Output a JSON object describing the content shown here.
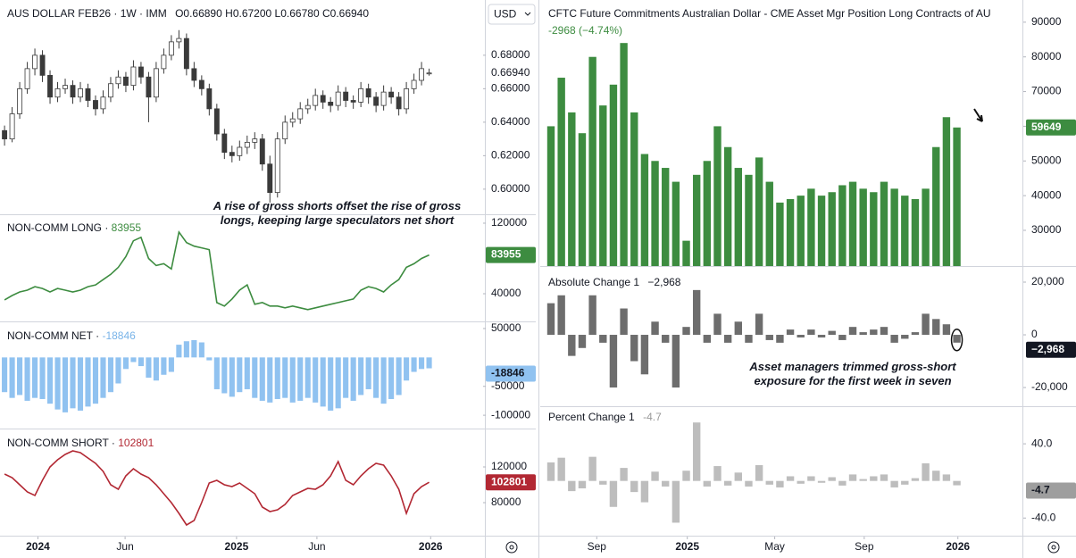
{
  "chart_data": [
    {
      "type": "candlestick",
      "title": "AUS DOLLAR FEB26",
      "interval": "1W",
      "exchange": "IMM",
      "currency": "USD",
      "ohlc_header": [
        {
          "name": "O",
          "value": 0.6689,
          "label": "0.66890"
        },
        {
          "name": "H",
          "value": 0.672,
          "label": "0.67200"
        },
        {
          "name": "L",
          "value": 0.6678,
          "label": "0.66780"
        },
        {
          "name": "C",
          "value": 0.6694,
          "label": "0.66940"
        }
      ],
      "open": [
        0.635,
        0.63,
        0.645,
        0.66,
        0.672,
        0.68,
        0.668,
        0.655,
        0.66,
        0.662,
        0.655,
        0.66,
        0.653,
        0.648,
        0.655,
        0.663,
        0.667,
        0.662,
        0.673,
        0.667,
        0.655,
        0.672,
        0.68,
        0.688,
        0.69,
        0.672,
        0.665,
        0.66,
        0.648,
        0.633,
        0.622,
        0.62,
        0.625,
        0.628,
        0.63,
        0.615,
        0.598,
        0.63,
        0.64,
        0.642,
        0.648,
        0.65,
        0.656,
        0.652,
        0.65,
        0.658,
        0.653,
        0.652,
        0.66,
        0.655,
        0.65,
        0.658,
        0.655,
        0.648,
        0.66,
        0.665,
        0.6689
      ],
      "high": [
        0.638,
        0.649,
        0.664,
        0.676,
        0.684,
        0.683,
        0.671,
        0.664,
        0.666,
        0.665,
        0.664,
        0.663,
        0.656,
        0.659,
        0.667,
        0.671,
        0.67,
        0.677,
        0.676,
        0.67,
        0.676,
        0.684,
        0.692,
        0.695,
        0.693,
        0.676,
        0.668,
        0.663,
        0.651,
        0.636,
        0.626,
        0.629,
        0.632,
        0.634,
        0.633,
        0.62,
        0.634,
        0.644,
        0.646,
        0.652,
        0.654,
        0.66,
        0.659,
        0.655,
        0.662,
        0.661,
        0.656,
        0.664,
        0.663,
        0.658,
        0.662,
        0.661,
        0.658,
        0.664,
        0.669,
        0.676,
        0.672
      ],
      "low": [
        0.626,
        0.628,
        0.642,
        0.657,
        0.668,
        0.664,
        0.651,
        0.652,
        0.657,
        0.651,
        0.652,
        0.649,
        0.644,
        0.645,
        0.652,
        0.66,
        0.658,
        0.659,
        0.663,
        0.64,
        0.652,
        0.669,
        0.677,
        0.684,
        0.668,
        0.661,
        0.656,
        0.644,
        0.629,
        0.618,
        0.616,
        0.617,
        0.621,
        0.624,
        0.611,
        0.592,
        0.595,
        0.627,
        0.637,
        0.639,
        0.645,
        0.647,
        0.648,
        0.646,
        0.647,
        0.649,
        0.648,
        0.649,
        0.651,
        0.646,
        0.647,
        0.651,
        0.644,
        0.645,
        0.657,
        0.662,
        0.6678
      ],
      "close": [
        0.63,
        0.645,
        0.66,
        0.672,
        0.68,
        0.668,
        0.655,
        0.66,
        0.662,
        0.655,
        0.66,
        0.653,
        0.648,
        0.655,
        0.663,
        0.667,
        0.662,
        0.673,
        0.667,
        0.655,
        0.672,
        0.68,
        0.688,
        0.69,
        0.672,
        0.665,
        0.66,
        0.648,
        0.633,
        0.622,
        0.62,
        0.625,
        0.628,
        0.63,
        0.615,
        0.598,
        0.63,
        0.64,
        0.642,
        0.648,
        0.65,
        0.656,
        0.652,
        0.65,
        0.658,
        0.653,
        0.652,
        0.66,
        0.655,
        0.65,
        0.658,
        0.655,
        0.648,
        0.66,
        0.665,
        0.672,
        0.6694
      ],
      "up_color": "#ffffff",
      "down_color": "#3a3a3a",
      "ylim": [
        0.585,
        0.713
      ],
      "yticks": [
        {
          "value": 0.6,
          "label": "0.60000"
        },
        {
          "value": 0.62,
          "label": "0.62000"
        },
        {
          "value": 0.64,
          "label": "0.64000"
        },
        {
          "value": 0.66,
          "label": "0.66000"
        },
        {
          "value": 0.68,
          "label": "0.68000"
        }
      ],
      "xlim": [
        -0.6,
        63
      ],
      "xticks": [
        {
          "value": 4.4,
          "label": "2024"
        },
        {
          "value": 15.9,
          "label": "Jun"
        },
        {
          "value": 30.6,
          "label": "2025"
        },
        {
          "value": 41.2,
          "label": "Jun"
        },
        {
          "value": 56.2,
          "label": "2026"
        }
      ],
      "annotation": "A rise of gross shorts offset the rise of gross longs, keeping large speculators net short"
    },
    {
      "type": "line",
      "series": [
        {
          "name": "NON-COMM LONG",
          "color": "#3d8c40",
          "values": [
            33000,
            38000,
            42000,
            44000,
            48000,
            46000,
            42000,
            46000,
            44000,
            42000,
            44000,
            48000,
            50000,
            56000,
            62000,
            70000,
            82000,
            100000,
            104000,
            80000,
            72000,
            74000,
            68000,
            110000,
            98000,
            94000,
            92000,
            90000,
            30000,
            26000,
            34000,
            44000,
            50000,
            28000,
            30000,
            26000,
            26000,
            24000,
            26000,
            24000,
            22000,
            24000,
            26000,
            28000,
            30000,
            32000,
            34000,
            44000,
            48000,
            46000,
            42000,
            50000,
            56000,
            70000,
            74000,
            80000,
            83955
          ]
        }
      ],
      "ylim": [
        8600,
        130100
      ],
      "yticks": [
        40000,
        120000
      ],
      "xlim": [
        -0.6,
        63
      ]
    },
    {
      "type": "bar",
      "series": [
        {
          "name": "NON-COMM NET",
          "color": "#90c2f0",
          "values": [
            -60000,
            -70000,
            -65000,
            -75000,
            -70000,
            -72000,
            -80000,
            -90000,
            -95000,
            -88000,
            -92000,
            -85000,
            -80000,
            -70000,
            -60000,
            -45000,
            -20000,
            -8000,
            -15000,
            -35000,
            -40000,
            -30000,
            -25000,
            22000,
            28000,
            30000,
            26000,
            -5000,
            -55000,
            -62000,
            -68000,
            -60000,
            -55000,
            -70000,
            -75000,
            -78000,
            -72000,
            -70000,
            -78000,
            -75000,
            -70000,
            -78000,
            -85000,
            -92000,
            -88000,
            -70000,
            -75000,
            -65000,
            -55000,
            -70000,
            -80000,
            -72000,
            -65000,
            -40000,
            -25000,
            -20000,
            -18846
          ]
        }
      ],
      "ylim": [
        -123000,
        62300
      ],
      "yticks": [
        -100000,
        -50000,
        50000
      ],
      "xlim": [
        -0.6,
        63
      ]
    },
    {
      "type": "line",
      "series": [
        {
          "name": "NON-COMM SHORT",
          "color": "#b22833",
          "values": [
            112000,
            108000,
            100000,
            92000,
            88000,
            105000,
            120000,
            128000,
            134000,
            138000,
            136000,
            130000,
            124000,
            115000,
            100000,
            95000,
            110000,
            118000,
            112000,
            108000,
            100000,
            90000,
            80000,
            68000,
            55000,
            60000,
            80000,
            102000,
            105000,
            100000,
            98000,
            102000,
            96000,
            90000,
            75000,
            70000,
            72000,
            78000,
            88000,
            92000,
            96000,
            95000,
            100000,
            110000,
            126000,
            105000,
            100000,
            110000,
            118000,
            124000,
            122000,
            110000,
            95000,
            68000,
            90000,
            98000,
            102801
          ]
        }
      ],
      "ylim": [
        43000,
        163000
      ],
      "yticks": [
        80000,
        120000
      ],
      "xlim": [
        -0.6,
        63
      ]
    },
    {
      "type": "bar",
      "title": "CFTC Future Commitments Australian Dollar - CME Asset Mgr Position Long Contracts of AU",
      "change_label": "-2968 (−4.74%)",
      "series": [
        {
          "color": "#3d8c40",
          "values": [
            60000,
            74000,
            64000,
            58000,
            80000,
            66000,
            72000,
            84000,
            64000,
            52000,
            50000,
            48000,
            44000,
            27000,
            46000,
            50000,
            60000,
            54000,
            48000,
            46000,
            51000,
            44000,
            38000,
            39000,
            40000,
            42000,
            40000,
            41000,
            43000,
            44000,
            42000,
            41000,
            44000,
            42000,
            40000,
            39000,
            42000,
            54000,
            62617,
            59649
          ]
        }
      ],
      "ylim": [
        19700,
        96400
      ],
      "yticks": [
        30000,
        40000,
        50000,
        60000,
        70000,
        80000,
        90000
      ],
      "xlim": [
        -1.03,
        45.3
      ],
      "xticks": [
        {
          "value": 4.4,
          "label": "Sep"
        },
        {
          "value": 13.1,
          "label": "2025"
        },
        {
          "value": 21.5,
          "label": "May"
        },
        {
          "value": 30.1,
          "label": "Sep"
        },
        {
          "value": 39.1,
          "label": "2026"
        }
      ]
    },
    {
      "type": "bar",
      "last_label": "−2,968",
      "annotation": "Asset managers trimmed gross-short exposure for the first week in seven",
      "series": [
        {
          "name": "Absolute Change 1",
          "color": "#6d6d6d",
          "values": [
            12000,
            15000,
            -8000,
            -5000,
            15000,
            -3000,
            -20000,
            10000,
            -10000,
            -15000,
            5000,
            -3000,
            -20000,
            3000,
            17000,
            -3000,
            8000,
            -3000,
            5000,
            -3000,
            8000,
            -2000,
            -3000,
            2000,
            -1000,
            2000,
            -1000,
            1500,
            -2000,
            3000,
            1000,
            2000,
            3000,
            -3000,
            -1500,
            1000,
            8000,
            6000,
            4000,
            -2968
          ]
        }
      ],
      "ylim": [
        -27100,
        26100
      ],
      "yticks": [
        {
          "value": -20000,
          "label": "-20,000"
        },
        0,
        {
          "value": 20000,
          "label": "20,000"
        }
      ],
      "xlim": [
        -1.03,
        45.3
      ]
    },
    {
      "type": "bar",
      "series": [
        {
          "name": "Percent Change 1",
          "color": "#bdbdbd",
          "values": [
            20,
            25,
            -11,
            -8,
            26,
            -4,
            -28,
            14,
            -12,
            -23,
            10,
            -6,
            -45,
            11,
            63,
            -6,
            16,
            -5,
            9,
            -6,
            17,
            -4,
            -7,
            5,
            -3,
            5,
            -2,
            4,
            -5,
            7,
            2,
            5,
            7,
            -7,
            -4,
            3,
            19,
            11,
            7,
            -4.7
          ]
        }
      ],
      "ylim": [
        -59,
        80.5
      ],
      "yticks": [
        {
          "value": -40,
          "label": "-40.0"
        },
        {
          "value": 40,
          "label": "40.0"
        }
      ],
      "xlim": [
        -1.03,
        45.3
      ]
    }
  ]
}
